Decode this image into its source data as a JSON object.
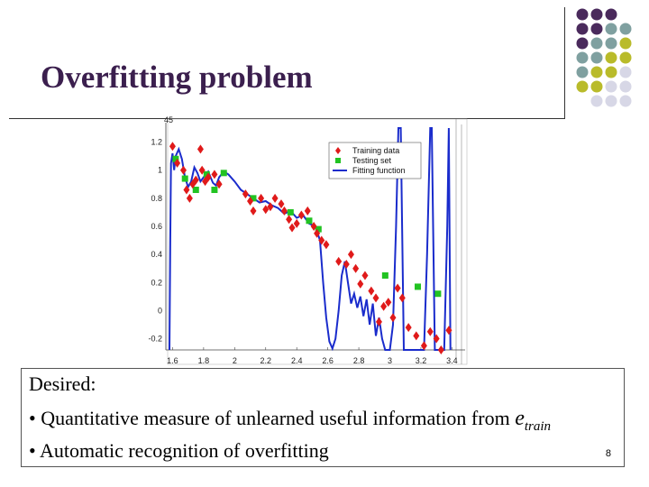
{
  "slide": {
    "title": "Overfitting problem",
    "page_number": "8",
    "box": {
      "line1": "Desired:",
      "line2_prefix": "• Quantitative measure of unlearned useful information from ",
      "line2_var": "e",
      "line2_sub": "train",
      "line3": "• Automatic recognition of overfitting"
    }
  },
  "colors": {
    "title": "#3b1f4e",
    "dot_purple": "#4a2a5c",
    "dot_teal": "#7fa0a0",
    "dot_olive": "#b9bb2a",
    "dot_light": "#d7d7e6",
    "training": "#e01a1a",
    "testing": "#22c322",
    "fitting": "#1a2ccc"
  },
  "chart_data": {
    "type": "scatter",
    "legend": [
      "Training data",
      "Testing set",
      "Fitting function"
    ],
    "legend_position": "top-right",
    "y_ticks_left": [
      "1.2",
      "1",
      "0.8",
      "0.6",
      "0.4",
      "0.2",
      "0",
      "-0.2"
    ],
    "x_ticks": [
      "1.6",
      "1.8",
      "2",
      "2.2",
      "2.4",
      "2.6",
      "2.8",
      "3",
      "3.2",
      "3.4"
    ],
    "top_label": "45",
    "xlim": [
      1.58,
      3.45
    ],
    "ylim": [
      -0.28,
      1.3
    ],
    "training": [
      {
        "x": 1.6,
        "y": 1.17
      },
      {
        "x": 1.63,
        "y": 1.05
      },
      {
        "x": 1.67,
        "y": 1.0
      },
      {
        "x": 1.69,
        "y": 0.86
      },
      {
        "x": 1.71,
        "y": 0.8
      },
      {
        "x": 1.73,
        "y": 0.9
      },
      {
        "x": 1.75,
        "y": 0.93
      },
      {
        "x": 1.78,
        "y": 1.15
      },
      {
        "x": 1.79,
        "y": 1.0
      },
      {
        "x": 1.81,
        "y": 0.92
      },
      {
        "x": 1.83,
        "y": 0.95
      },
      {
        "x": 1.87,
        "y": 0.97
      },
      {
        "x": 1.9,
        "y": 0.9
      },
      {
        "x": 2.07,
        "y": 0.83
      },
      {
        "x": 2.1,
        "y": 0.78
      },
      {
        "x": 2.12,
        "y": 0.71
      },
      {
        "x": 2.17,
        "y": 0.8
      },
      {
        "x": 2.2,
        "y": 0.72
      },
      {
        "x": 2.23,
        "y": 0.74
      },
      {
        "x": 2.26,
        "y": 0.8
      },
      {
        "x": 2.3,
        "y": 0.76
      },
      {
        "x": 2.32,
        "y": 0.71
      },
      {
        "x": 2.35,
        "y": 0.65
      },
      {
        "x": 2.37,
        "y": 0.59
      },
      {
        "x": 2.4,
        "y": 0.62
      },
      {
        "x": 2.43,
        "y": 0.68
      },
      {
        "x": 2.47,
        "y": 0.71
      },
      {
        "x": 2.51,
        "y": 0.6
      },
      {
        "x": 2.53,
        "y": 0.55
      },
      {
        "x": 2.56,
        "y": 0.5
      },
      {
        "x": 2.59,
        "y": 0.47
      },
      {
        "x": 2.67,
        "y": 0.35
      },
      {
        "x": 2.72,
        "y": 0.33
      },
      {
        "x": 2.75,
        "y": 0.4
      },
      {
        "x": 2.78,
        "y": 0.3
      },
      {
        "x": 2.81,
        "y": 0.19
      },
      {
        "x": 2.84,
        "y": 0.25
      },
      {
        "x": 2.88,
        "y": 0.14
      },
      {
        "x": 2.91,
        "y": 0.09
      },
      {
        "x": 2.93,
        "y": -0.08
      },
      {
        "x": 2.96,
        "y": 0.03
      },
      {
        "x": 2.99,
        "y": 0.06
      },
      {
        "x": 3.02,
        "y": -0.05
      },
      {
        "x": 3.05,
        "y": 0.16
      },
      {
        "x": 3.08,
        "y": 0.09
      },
      {
        "x": 3.12,
        "y": -0.12
      },
      {
        "x": 3.17,
        "y": -0.18
      },
      {
        "x": 3.22,
        "y": -0.25
      },
      {
        "x": 3.26,
        "y": -0.15
      },
      {
        "x": 3.3,
        "y": -0.2
      },
      {
        "x": 3.33,
        "y": -0.28
      },
      {
        "x": 3.38,
        "y": -0.14
      }
    ],
    "testing": [
      {
        "x": 1.62,
        "y": 1.08
      },
      {
        "x": 1.68,
        "y": 0.94
      },
      {
        "x": 1.75,
        "y": 0.86
      },
      {
        "x": 1.82,
        "y": 0.97
      },
      {
        "x": 1.87,
        "y": 0.86
      },
      {
        "x": 1.93,
        "y": 0.98
      },
      {
        "x": 2.12,
        "y": 0.8
      },
      {
        "x": 2.36,
        "y": 0.7
      },
      {
        "x": 2.48,
        "y": 0.64
      },
      {
        "x": 2.54,
        "y": 0.58
      },
      {
        "x": 2.97,
        "y": 0.25
      },
      {
        "x": 3.18,
        "y": 0.17
      },
      {
        "x": 3.31,
        "y": 0.12
      }
    ],
    "fitting": [
      {
        "x": 1.58,
        "y": -0.28
      },
      {
        "x": 1.585,
        "y": 0.5
      },
      {
        "x": 1.59,
        "y": 1.05
      },
      {
        "x": 1.6,
        "y": 1.12
      },
      {
        "x": 1.61,
        "y": 1.0
      },
      {
        "x": 1.62,
        "y": 1.1
      },
      {
        "x": 1.64,
        "y": 1.15
      },
      {
        "x": 1.66,
        "y": 1.08
      },
      {
        "x": 1.68,
        "y": 0.95
      },
      {
        "x": 1.7,
        "y": 0.88
      },
      {
        "x": 1.72,
        "y": 0.92
      },
      {
        "x": 1.74,
        "y": 1.02
      },
      {
        "x": 1.76,
        "y": 0.98
      },
      {
        "x": 1.78,
        "y": 0.92
      },
      {
        "x": 1.8,
        "y": 0.95
      },
      {
        "x": 1.83,
        "y": 0.99
      },
      {
        "x": 1.86,
        "y": 0.91
      },
      {
        "x": 1.88,
        "y": 0.89
      },
      {
        "x": 1.9,
        "y": 0.95
      },
      {
        "x": 1.93,
        "y": 0.99
      },
      {
        "x": 1.96,
        "y": 0.97
      },
      {
        "x": 2.0,
        "y": 0.92
      },
      {
        "x": 2.04,
        "y": 0.86
      },
      {
        "x": 2.08,
        "y": 0.83
      },
      {
        "x": 2.12,
        "y": 0.8
      },
      {
        "x": 2.16,
        "y": 0.77
      },
      {
        "x": 2.2,
        "y": 0.78
      },
      {
        "x": 2.24,
        "y": 0.75
      },
      {
        "x": 2.28,
        "y": 0.73
      },
      {
        "x": 2.32,
        "y": 0.69
      },
      {
        "x": 2.36,
        "y": 0.71
      },
      {
        "x": 2.4,
        "y": 0.66
      },
      {
        "x": 2.44,
        "y": 0.68
      },
      {
        "x": 2.48,
        "y": 0.62
      },
      {
        "x": 2.52,
        "y": 0.6
      },
      {
        "x": 2.55,
        "y": 0.5
      },
      {
        "x": 2.57,
        "y": 0.2
      },
      {
        "x": 2.59,
        "y": -0.05
      },
      {
        "x": 2.61,
        "y": -0.22
      },
      {
        "x": 2.63,
        "y": -0.27
      },
      {
        "x": 2.65,
        "y": -0.2
      },
      {
        "x": 2.67,
        "y": 0.0
      },
      {
        "x": 2.69,
        "y": 0.25
      },
      {
        "x": 2.71,
        "y": 0.35
      },
      {
        "x": 2.73,
        "y": 0.2
      },
      {
        "x": 2.75,
        "y": 0.05
      },
      {
        "x": 2.77,
        "y": 0.12
      },
      {
        "x": 2.79,
        "y": 0.02
      },
      {
        "x": 2.81,
        "y": 0.1
      },
      {
        "x": 2.83,
        "y": -0.04
      },
      {
        "x": 2.85,
        "y": 0.08
      },
      {
        "x": 2.87,
        "y": -0.1
      },
      {
        "x": 2.89,
        "y": 0.05
      },
      {
        "x": 2.91,
        "y": -0.18
      },
      {
        "x": 2.93,
        "y": -0.05
      },
      {
        "x": 2.95,
        "y": -0.2
      },
      {
        "x": 2.97,
        "y": -0.28
      },
      {
        "x": 3.0,
        "y": -0.28
      },
      {
        "x": 3.02,
        "y": -0.1
      },
      {
        "x": 3.04,
        "y": 0.6
      },
      {
        "x": 3.055,
        "y": 1.3
      },
      {
        "x": 3.07,
        "y": 1.3
      },
      {
        "x": 3.09,
        "y": -0.28
      },
      {
        "x": 3.22,
        "y": -0.28
      },
      {
        "x": 3.24,
        "y": 0.4
      },
      {
        "x": 3.26,
        "y": 1.3
      },
      {
        "x": 3.27,
        "y": 1.3
      },
      {
        "x": 3.29,
        "y": -0.28
      },
      {
        "x": 3.35,
        "y": -0.28
      },
      {
        "x": 3.37,
        "y": 0.6
      },
      {
        "x": 3.38,
        "y": 1.3
      },
      {
        "x": 3.39,
        "y": -0.28
      }
    ]
  }
}
